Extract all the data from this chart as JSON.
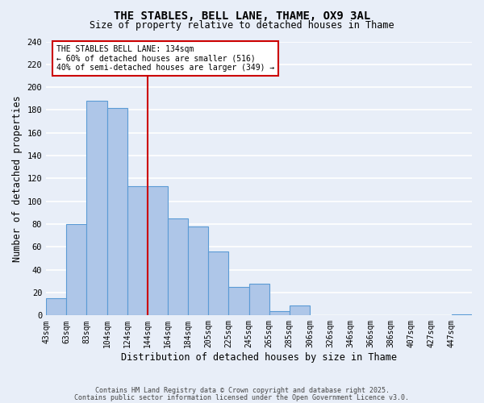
{
  "title": "THE STABLES, BELL LANE, THAME, OX9 3AL",
  "subtitle": "Size of property relative to detached houses in Thame",
  "xlabel": "Distribution of detached houses by size in Thame",
  "ylabel": "Number of detached properties",
  "bar_labels": [
    "43sqm",
    "63sqm",
    "83sqm",
    "104sqm",
    "124sqm",
    "144sqm",
    "164sqm",
    "184sqm",
    "205sqm",
    "225sqm",
    "245sqm",
    "265sqm",
    "285sqm",
    "306sqm",
    "326sqm",
    "346sqm",
    "366sqm",
    "386sqm",
    "407sqm",
    "427sqm",
    "447sqm"
  ],
  "bar_values": [
    15,
    80,
    188,
    182,
    113,
    113,
    85,
    78,
    56,
    25,
    28,
    4,
    9,
    0,
    0,
    0,
    0,
    0,
    0,
    0,
    1
  ],
  "bar_color": "#aec6e8",
  "bar_edge_color": "#5b9bd5",
  "background_color": "#e8eef8",
  "grid_color": "#ffffff",
  "property_line_bin": 4,
  "property_label": "134sqm",
  "property_line_color": "#cc0000",
  "annotation_text": "THE STABLES BELL LANE: 134sqm\n← 60% of detached houses are smaller (516)\n40% of semi-detached houses are larger (349) →",
  "annotation_box_color": "#cc0000",
  "ylim": [
    0,
    240
  ],
  "yticks": [
    0,
    20,
    40,
    60,
    80,
    100,
    120,
    140,
    160,
    180,
    200,
    220,
    240
  ],
  "footnote1": "Contains HM Land Registry data © Crown copyright and database right 2025.",
  "footnote2": "Contains public sector information licensed under the Open Government Licence v3.0."
}
